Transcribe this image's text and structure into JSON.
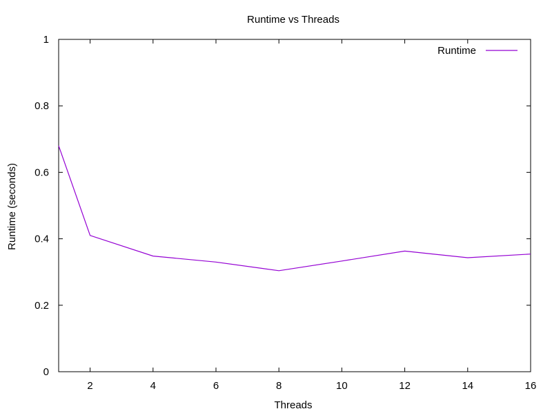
{
  "chart_data": {
    "type": "line",
    "title": "Runtime vs Threads",
    "xlabel": "Threads",
    "ylabel": "Runtime (seconds)",
    "xlim": [
      1,
      16
    ],
    "ylim": [
      0,
      1
    ],
    "xticks": [
      2,
      4,
      6,
      8,
      10,
      12,
      14,
      16
    ],
    "yticks": [
      0,
      0.2,
      0.4,
      0.6,
      0.8,
      1
    ],
    "ytick_labels": [
      "0",
      "0.2",
      "0.4",
      "0.6",
      "0.8",
      "1"
    ],
    "grid": false,
    "legend_position": "top-right",
    "series": [
      {
        "name": "Runtime",
        "color": "#9400d3",
        "x": [
          1,
          2,
          4,
          6,
          8,
          10,
          12,
          14,
          16
        ],
        "y": [
          0.68,
          0.41,
          0.348,
          0.33,
          0.304,
          0.333,
          0.363,
          0.343,
          0.354
        ]
      }
    ]
  }
}
